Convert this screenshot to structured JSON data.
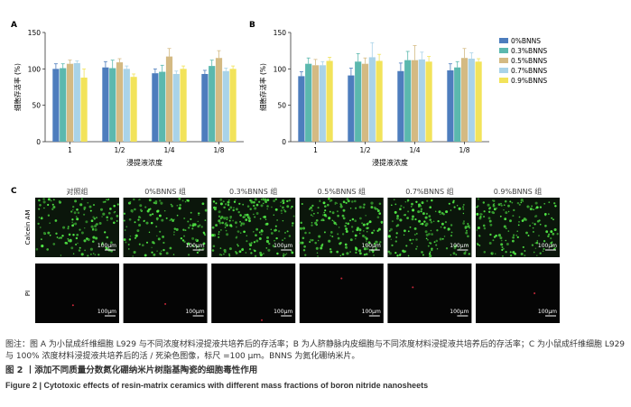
{
  "panel_labels": [
    "A",
    "B",
    "C"
  ],
  "legend": [
    "0%BNNS",
    "0.3%BNNS",
    "0.5%BNNS",
    "0.7%BNNS",
    "0.9%BNNS"
  ],
  "colors": [
    "#4d7dbd",
    "#5bb8ae",
    "#d4ba83",
    "#a9d3e8",
    "#f2e35a"
  ],
  "chart_data": [
    {
      "type": "bar",
      "panel": "A",
      "categories": [
        "1",
        "1/2",
        "1/4",
        "1/8"
      ],
      "series": [
        {
          "name": "0%BNNS",
          "values": [
            100,
            102,
            94,
            93
          ]
        },
        {
          "name": "0.3%BNNS",
          "values": [
            101,
            101,
            96,
            104
          ]
        },
        {
          "name": "0.5%BNNS",
          "values": [
            107,
            109,
            117,
            115
          ]
        },
        {
          "name": "0.7%BNNS",
          "values": [
            108,
            100,
            93,
            97
          ]
        },
        {
          "name": "0.9%BNNS",
          "values": [
            88,
            89,
            100,
            100
          ]
        }
      ],
      "errors": [
        [
          7,
          8,
          6,
          5
        ],
        [
          6,
          11,
          9,
          8
        ],
        [
          5,
          5,
          11,
          10
        ],
        [
          3,
          4,
          4,
          4
        ],
        [
          12,
          4,
          4,
          4
        ]
      ],
      "xlabel": "浸提液浓度",
      "ylabel": "细胞存活率 (%)",
      "ylim": [
        0,
        150
      ],
      "yticks": [
        "0",
        "50",
        "100",
        "150"
      ]
    },
    {
      "type": "bar",
      "panel": "B",
      "categories": [
        "1",
        "1/2",
        "1/4",
        "1/8"
      ],
      "series": [
        {
          "name": "0%BNNS",
          "values": [
            90,
            91,
            97,
            98
          ]
        },
        {
          "name": "0.3%BNNS",
          "values": [
            107,
            110,
            112,
            102
          ]
        },
        {
          "name": "0.5%BNNS",
          "values": [
            105,
            107,
            112,
            115
          ]
        },
        {
          "name": "0.7%BNNS",
          "values": [
            105,
            116,
            113,
            114
          ]
        },
        {
          "name": "0.9%BNNS",
          "values": [
            111,
            111,
            110,
            110
          ]
        }
      ],
      "errors": [
        [
          6,
          10,
          11,
          9
        ],
        [
          8,
          11,
          12,
          8
        ],
        [
          8,
          8,
          20,
          13
        ],
        [
          5,
          20,
          10,
          8
        ],
        [
          5,
          9,
          7,
          4
        ]
      ],
      "xlabel": "浸提液浓度",
      "ylabel": "细胞存活率 (%)",
      "ylim": [
        0,
        150
      ],
      "yticks": [
        "0",
        "50",
        "100",
        "150"
      ]
    }
  ],
  "panel_c": {
    "column_labels": [
      "对照组",
      "0%BNNS 组",
      "0.3%BNNS 组",
      "0.5%BNNS 组",
      "0.7%BNNS 组",
      "0.9%BNNS 组"
    ],
    "row_labels": [
      "Calcein AM",
      "PI"
    ],
    "scale_bar": "100μm",
    "live_density": [
      0.55,
      0.55,
      0.8,
      0.7,
      0.6,
      0.62
    ]
  },
  "caption": {
    "note": "图注：图 A 为小鼠成纤维细胞 L929 与不同浓度材料浸提液共培养后的存活率；B 为人脐静脉内皮细胞与不同浓度材料浸提液共培养后的存活率；C 为小鼠成纤维细胞 L929 与 100% 浓度材料浸提液共培养后的活 / 死染色图像，标尺 =100 μm。BNNS 为氮化硼纳米片。",
    "title_cn": "图 2 丨添加不同质量分数氮化硼纳米片树脂基陶瓷的细胞毒性作用",
    "title_en": "Figure 2  |  Cytotoxic effects of resin-matrix ceramics with different mass fractions of boron nitride nanosheets"
  }
}
